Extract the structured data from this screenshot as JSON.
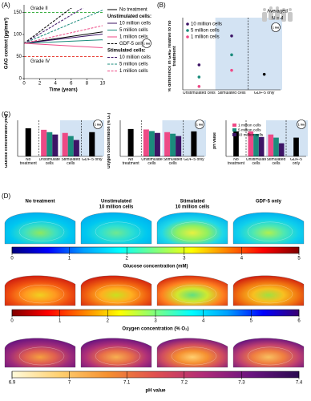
{
  "panel_labels": [
    "(A)",
    "(B)",
    "(C)",
    "(D)"
  ],
  "heatmap_headers": [
    [
      "No treatment"
    ],
    [
      "Unstimulated",
      "10 million cells"
    ],
    [
      "Stimulated",
      "10 million cells"
    ],
    [
      "GDF-5 only"
    ]
  ],
  "chart_data": [
    {
      "type": "line",
      "x_label": "Time (years)",
      "y_label": "GAG content (µg/mm³)",
      "x": [
        0,
        10
      ],
      "xlim": [
        0,
        10
      ],
      "xticks": [
        0,
        2,
        4,
        6,
        8,
        10
      ],
      "ylim": [
        0,
        160
      ],
      "yticks": [
        0,
        50,
        100,
        150
      ],
      "reference_lines": [
        {
          "name": "Grade II",
          "value": 150,
          "color": "#3cb043"
        },
        {
          "name": "Grade IV",
          "value": 50,
          "color": "#e8453c"
        }
      ],
      "legend_groups": [
        "Unstimulated cells:",
        "Stimulated cells:"
      ],
      "series": [
        {
          "name": "No treatment",
          "color": "#000000",
          "dash": false,
          "values": [
            80,
            106
          ]
        },
        {
          "name": "10 million cells",
          "group": 0,
          "color": "#3d1466",
          "dash": false,
          "values": [
            80,
            101
          ]
        },
        {
          "name": "5 million cells",
          "group": 0,
          "color": "#1b8c7c",
          "dash": false,
          "values": [
            80,
            88
          ]
        },
        {
          "name": "1 million cells",
          "group": 0,
          "color": "#ee4a86",
          "dash": false,
          "values": [
            80,
            70
          ]
        },
        {
          "name": "GDF-5 only",
          "color": "#000000",
          "dash": true,
          "values": [
            80,
            213
          ]
        },
        {
          "name": "10 million cells",
          "group": 1,
          "color": "#3d1466",
          "dash": true,
          "values": [
            80,
            187
          ]
        },
        {
          "name": "5 million cells",
          "group": 1,
          "color": "#1b8c7c",
          "dash": true,
          "values": [
            80,
            155
          ]
        },
        {
          "name": "1 million cells",
          "group": 1,
          "color": "#ee4a86",
          "dash": true,
          "values": [
            80,
            120
          ]
        }
      ],
      "badge": "1 mo"
    },
    {
      "type": "dot",
      "y_label": "% difference in GAG relative to no treatment",
      "categories": [
        "Unstimulated cells",
        "Stimulated cells",
        "GDF-5 only"
      ],
      "ylim": [
        0,
        100
      ],
      "series": [
        {
          "name": "10 million cells",
          "color": "#3d1466",
          "values": [
            37,
            80,
            null
          ]
        },
        {
          "name": "5 million cells",
          "color": "#1b8c7c",
          "values": [
            19,
            52,
            null
          ]
        },
        {
          "name": "1 million cells",
          "color": "#ee4a86",
          "values": [
            5,
            29,
            null
          ]
        },
        {
          "color": "#000000",
          "values": [
            null,
            null,
            23
          ]
        }
      ],
      "note": [
        "Averaged",
        "N = 4"
      ],
      "shade_from": 1,
      "dividers": [
        2
      ],
      "badge": "1 mo"
    },
    {
      "type": "bar",
      "y_label": "Glucose concentration (mM)",
      "categories": [
        "No treatment",
        "Unstimulated cells",
        "Stimulated cells",
        "GDF-5 only"
      ],
      "ylim": [
        0,
        2
      ],
      "series": [
        {
          "color": "#000000",
          "values": [
            1.8,
            null,
            null,
            1.55
          ]
        },
        {
          "color": "#ee4a86",
          "values": [
            null,
            1.7,
            1.5,
            null
          ]
        },
        {
          "color": "#1b8c7c",
          "values": [
            null,
            1.55,
            1.3,
            null
          ]
        },
        {
          "color": "#3d1466",
          "values": [
            null,
            1.4,
            1.05,
            null
          ]
        }
      ],
      "shade_from": 2,
      "dividers": [
        1,
        3
      ],
      "badge": "1 mo"
    },
    {
      "type": "bar",
      "y_label": "Oxygen concentration (% O₂)",
      "categories": [
        "No treatment",
        "Unstimulated cells",
        "Stimulated cells",
        "GDF-5 only"
      ],
      "ylim": [
        0,
        2
      ],
      "series": [
        {
          "color": "#000000",
          "values": [
            1.75,
            null,
            null,
            1.6
          ]
        },
        {
          "color": "#ee4a86",
          "values": [
            null,
            1.72,
            1.55,
            null
          ]
        },
        {
          "color": "#1b8c7c",
          "values": [
            null,
            1.62,
            1.45,
            null
          ]
        },
        {
          "color": "#3d1466",
          "values": [
            null,
            1.5,
            1.3,
            null
          ]
        }
      ],
      "shade_from": 2,
      "dividers": [
        1,
        3
      ],
      "badge": "1 mo"
    },
    {
      "type": "bar",
      "y_label": "pH value",
      "categories": [
        "No treatment",
        "Unstimulated cells",
        "Stimulated cells",
        "GDF-5 only"
      ],
      "ylim": [
        6.5,
        7.5
      ],
      "series": [
        {
          "color": "#000000",
          "values": [
            7.3,
            null,
            null,
            7.1
          ]
        },
        {
          "name": "1 million cells",
          "color": "#ee4a86",
          "values": [
            null,
            7.3,
            7.2,
            null
          ]
        },
        {
          "name": "5 million cells",
          "color": "#1b8c7c",
          "values": [
            null,
            7.22,
            7.1,
            null
          ]
        },
        {
          "name": "10 million cells",
          "color": "#3d1466",
          "values": [
            null,
            7.12,
            6.92,
            null
          ]
        }
      ],
      "shade_from": 2,
      "dividers": [
        1,
        3
      ],
      "badge": "1 mo"
    },
    {
      "type": "colorbar",
      "label": "Glucose concentration (mM)",
      "xlim": [
        0,
        5
      ],
      "xticks": [
        0,
        1,
        2,
        3,
        4,
        5
      ],
      "colors": [
        "#00007f",
        "#0000ff",
        "#00a0ff",
        "#00ffff",
        "#7fff7f",
        "#ffff00",
        "#ff8000",
        "#ff0000",
        "#7f0000"
      ]
    },
    {
      "type": "colorbar",
      "label": "Oxygen concentration (% O₂)",
      "xlim": [
        0,
        6
      ],
      "xticks": [
        0,
        1,
        2,
        3,
        4,
        5,
        6
      ],
      "colors": [
        "#7f0000",
        "#ff0000",
        "#ff8000",
        "#ffff00",
        "#7fff7f",
        "#00ffff",
        "#00a0ff",
        "#0000ff",
        "#3b0070"
      ]
    },
    {
      "type": "colorbar",
      "label": "pH value",
      "xlim": [
        6.9,
        7.4
      ],
      "xticks": [
        6.9,
        7,
        7.1,
        7.2,
        7.3,
        7.4
      ],
      "colors": [
        "#fffbdc",
        "#ffd070",
        "#f59030",
        "#e05050",
        "#b02c78",
        "#6a1480",
        "#2a0a50"
      ]
    }
  ]
}
